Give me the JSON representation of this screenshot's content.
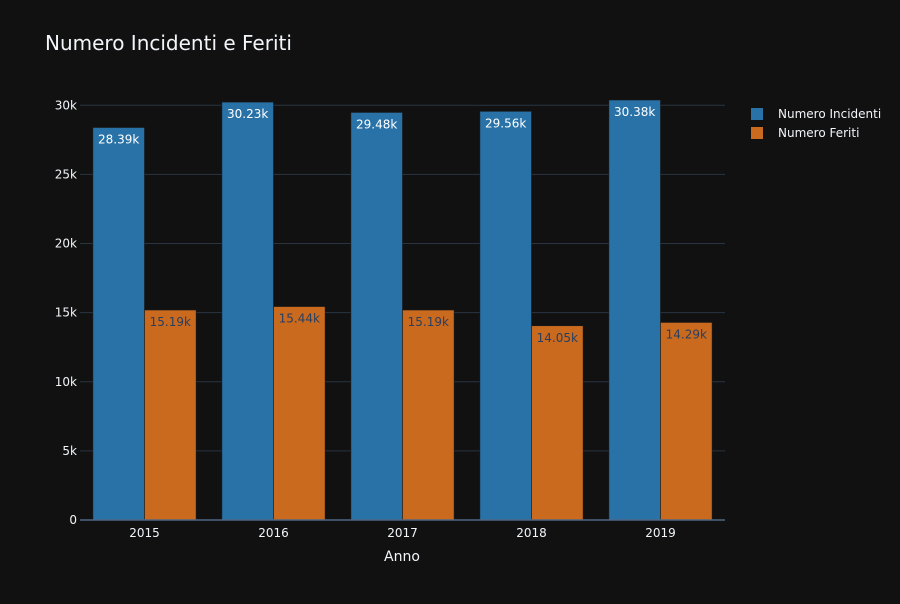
{
  "chart_data": {
    "type": "bar",
    "title": "Numero Incidenti e Feriti",
    "xlabel": "Anno",
    "ylabel": "",
    "categories": [
      "2015",
      "2016",
      "2017",
      "2018",
      "2019"
    ],
    "series": [
      {
        "name": "Numero Incidenti",
        "values": [
          28390,
          30230,
          29480,
          29560,
          30380
        ],
        "data_labels": [
          "28.39k",
          "30.23k",
          "29.48k",
          "29.56k",
          "30.38k"
        ],
        "color": "#2872a8"
      },
      {
        "name": "Numero Feriti",
        "values": [
          15190,
          15440,
          15190,
          14050,
          14290
        ],
        "data_labels": [
          "15.19k",
          "15.44k",
          "15.19k",
          "14.05k",
          "14.29k"
        ],
        "color": "#c96a1e"
      }
    ],
    "ylim": [
      0,
      30380
    ],
    "y_ticks": [
      0,
      5000,
      10000,
      15000,
      20000,
      25000,
      30000
    ],
    "y_tick_labels": [
      "0",
      "5k",
      "10k",
      "15k",
      "20k",
      "25k",
      "30k"
    ],
    "grid": true,
    "legend_position": "top-right",
    "colors": {
      "background": "#111111",
      "grid": "#283442",
      "text": "#f2f5fa",
      "incidenti_label_text": "#ffffff",
      "feriti_label_text": "#2a3f5f"
    }
  }
}
